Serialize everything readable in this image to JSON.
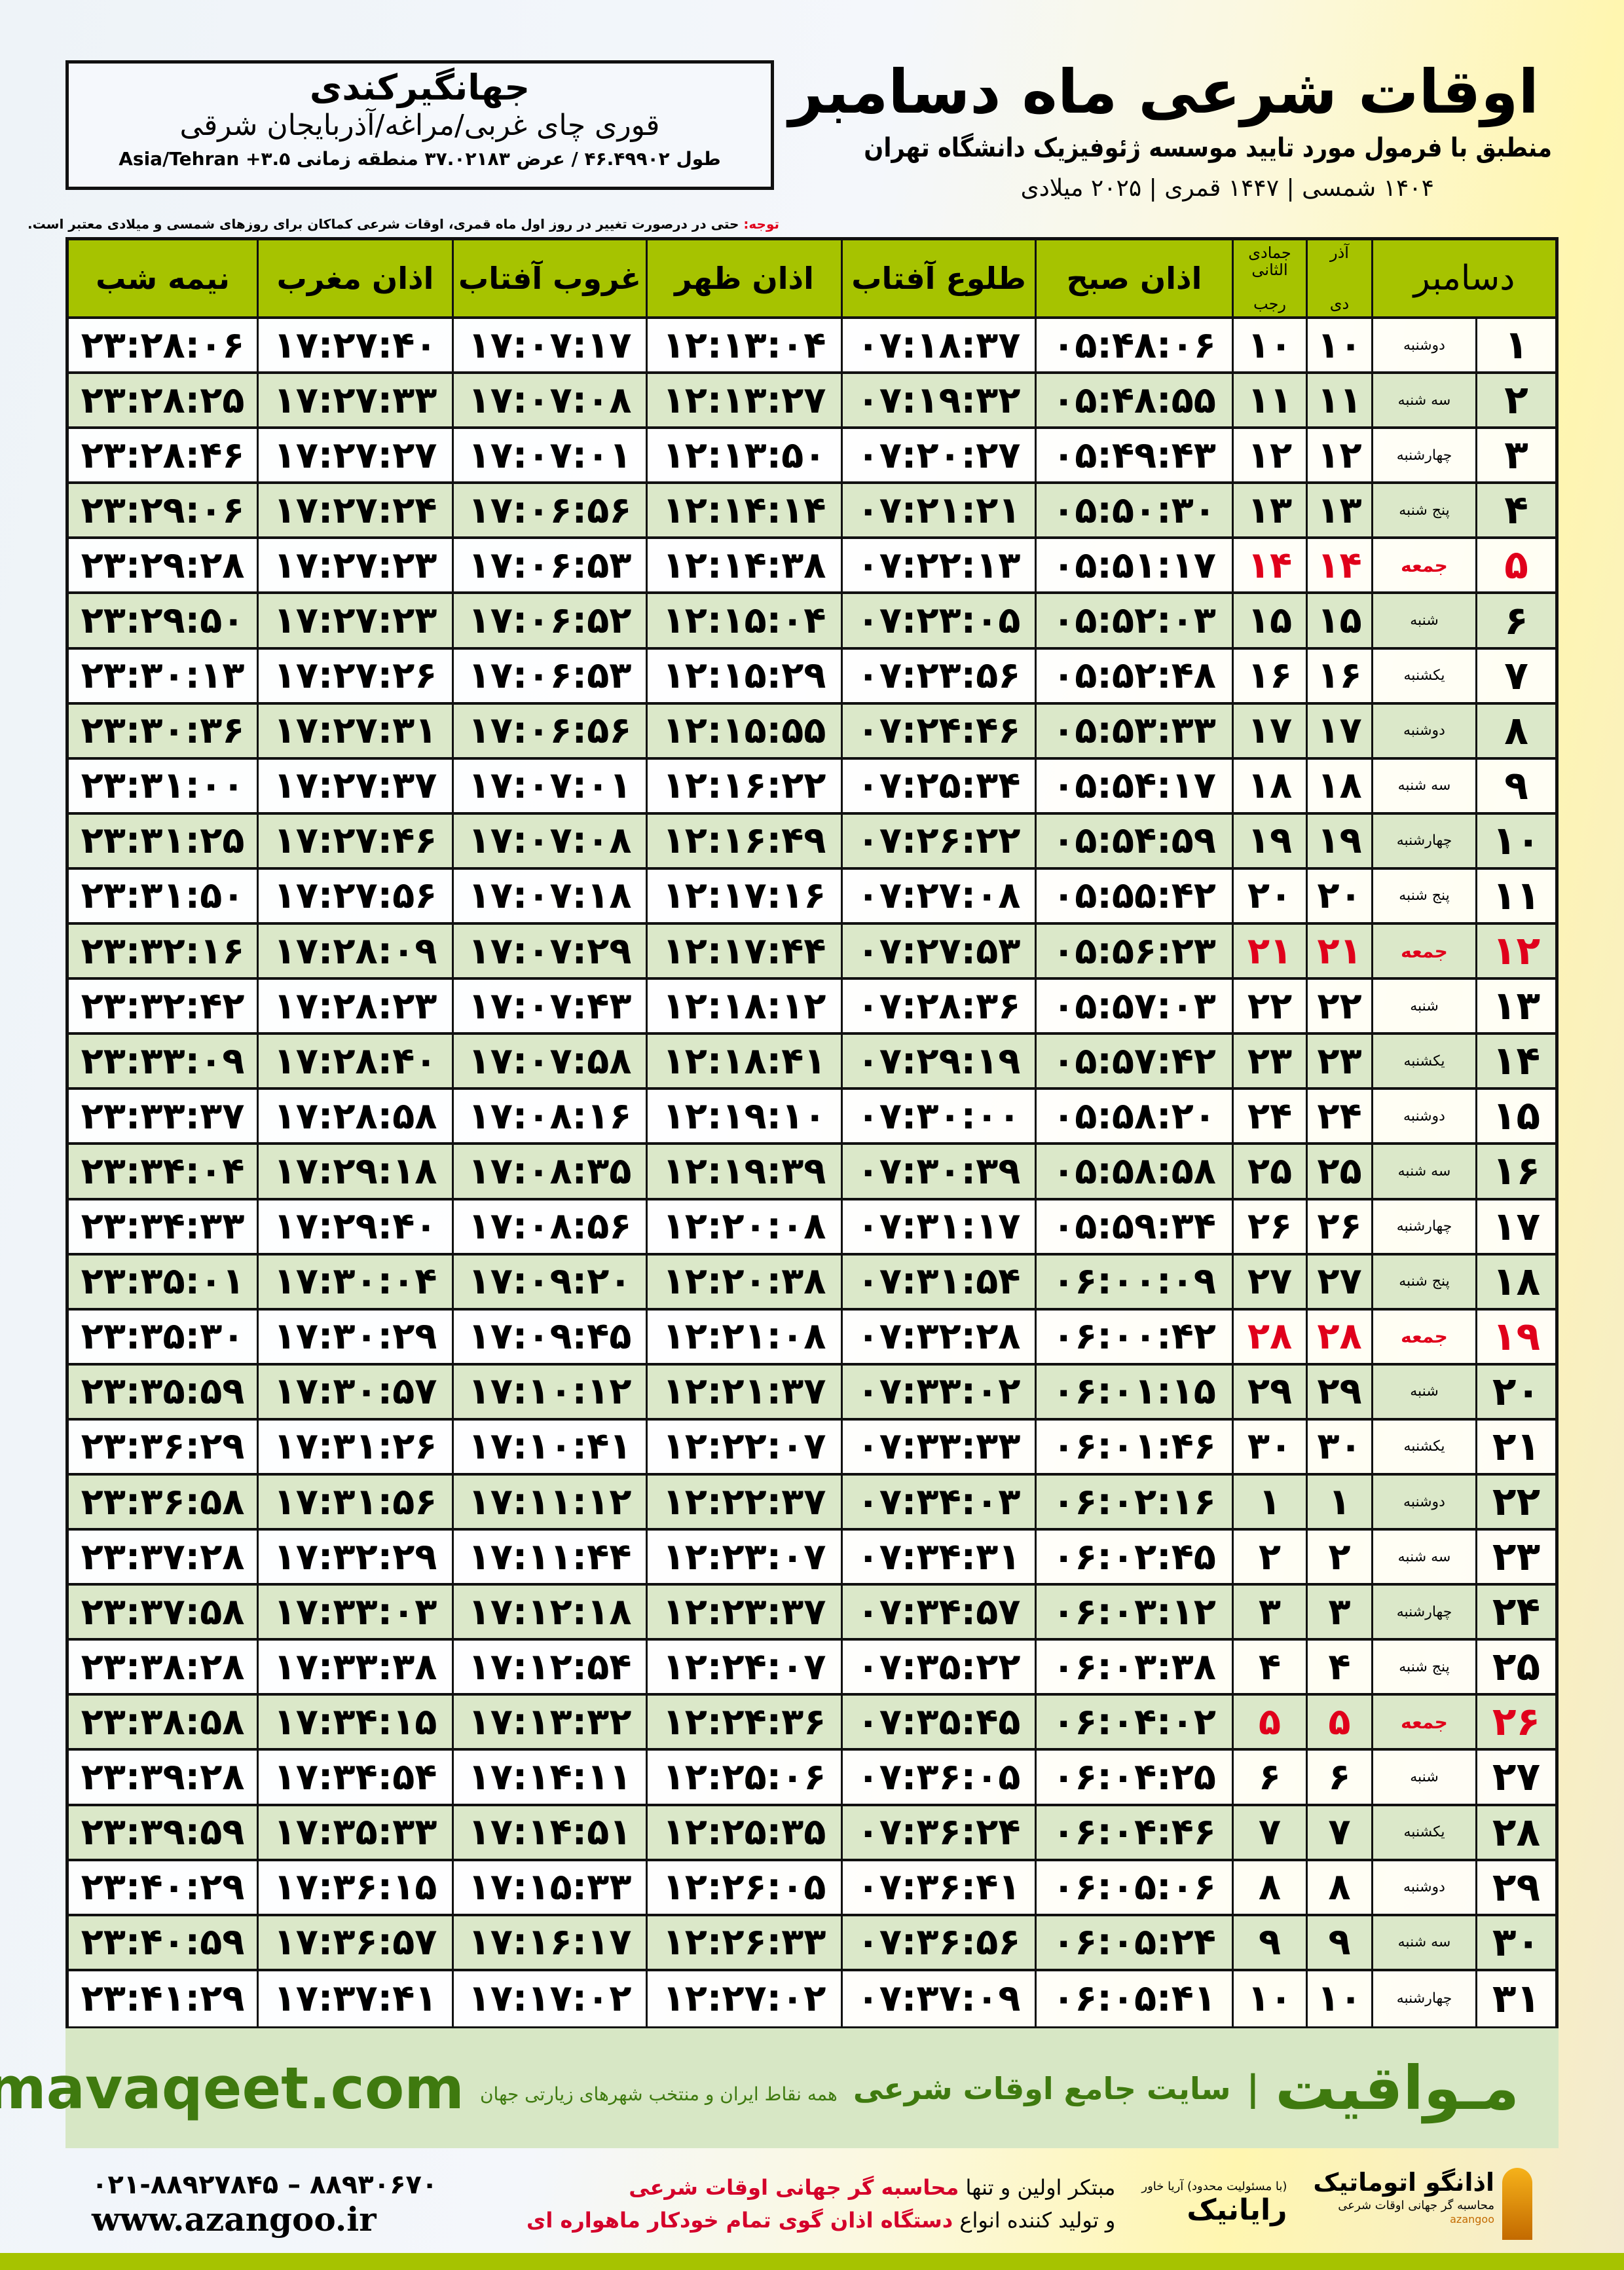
{
  "location": {
    "name": "جهانگیرکندی",
    "region": "قوری چای غربی/مراغه/آذربایجان شرقی",
    "coords": "طول ۴۶.۴۹۹۰۲ / عرض ۳۷.۰۲۱۸۳ منطقه زمانی ۳.۵+ Asia/Tehran"
  },
  "header": {
    "title": "اوقات شرعی ماه دسامبر",
    "subtitle": "منطبق با فرمول مورد تایید موسسه ژئوفیزیک دانشگاه تهران",
    "year_line": "۱۴۰۴ شمسی | ۱۴۴۷ قمری | ۲۰۲۵ میلادی"
  },
  "note": {
    "label": "توجه:",
    "text": " حتی در درصورت تغییر در روز اول ماه قمری، اوقات شرعی کماکان برای روزهای شمسی و میلادی معتبر است."
  },
  "table": {
    "columns": {
      "month": "دسامبر",
      "dey_top": "آذر",
      "dey": "دی",
      "rajab_top": "جمادی الثانی",
      "rajab": "رجب",
      "fajr": "اذان صبح",
      "sunrise": "طلوع آفتاب",
      "dhuhr": "اذان ظهر",
      "sunset": "غروب آفتاب",
      "maghrib": "اذان مغرب",
      "midnight": "نیمه شب"
    },
    "highlight_color": "#e0001b",
    "rows": [
      [
        "۱",
        "دوشنبه",
        "۱۰",
        "۱۰",
        "۰۵:۴۸:۰۶",
        "۰۷:۱۸:۳۷",
        "۱۲:۱۳:۰۴",
        "۱۷:۰۷:۱۷",
        "۱۷:۲۷:۴۰",
        "۲۳:۲۸:۰۶"
      ],
      [
        "۲",
        "سه شنبه",
        "۱۱",
        "۱۱",
        "۰۵:۴۸:۵۵",
        "۰۷:۱۹:۳۲",
        "۱۲:۱۳:۲۷",
        "۱۷:۰۷:۰۸",
        "۱۷:۲۷:۳۳",
        "۲۳:۲۸:۲۵"
      ],
      [
        "۳",
        "چهارشنبه",
        "۱۲",
        "۱۲",
        "۰۵:۴۹:۴۳",
        "۰۷:۲۰:۲۷",
        "۱۲:۱۳:۵۰",
        "۱۷:۰۷:۰۱",
        "۱۷:۲۷:۲۷",
        "۲۳:۲۸:۴۶"
      ],
      [
        "۴",
        "پنج شنبه",
        "۱۳",
        "۱۳",
        "۰۵:۵۰:۳۰",
        "۰۷:۲۱:۲۱",
        "۱۲:۱۴:۱۴",
        "۱۷:۰۶:۵۶",
        "۱۷:۲۷:۲۴",
        "۲۳:۲۹:۰۶"
      ],
      [
        "۵",
        "جمعه",
        "۱۴",
        "۱۴",
        "۰۵:۵۱:۱۷",
        "۰۷:۲۲:۱۳",
        "۱۲:۱۴:۳۸",
        "۱۷:۰۶:۵۳",
        "۱۷:۲۷:۲۳",
        "۲۳:۲۹:۲۸"
      ],
      [
        "۶",
        "شنبه",
        "۱۵",
        "۱۵",
        "۰۵:۵۲:۰۳",
        "۰۷:۲۳:۰۵",
        "۱۲:۱۵:۰۴",
        "۱۷:۰۶:۵۲",
        "۱۷:۲۷:۲۳",
        "۲۳:۲۹:۵۰"
      ],
      [
        "۷",
        "یکشنبه",
        "۱۶",
        "۱۶",
        "۰۵:۵۲:۴۸",
        "۰۷:۲۳:۵۶",
        "۱۲:۱۵:۲۹",
        "۱۷:۰۶:۵۳",
        "۱۷:۲۷:۲۶",
        "۲۳:۳۰:۱۳"
      ],
      [
        "۸",
        "دوشنبه",
        "۱۷",
        "۱۷",
        "۰۵:۵۳:۳۳",
        "۰۷:۲۴:۴۶",
        "۱۲:۱۵:۵۵",
        "۱۷:۰۶:۵۶",
        "۱۷:۲۷:۳۱",
        "۲۳:۳۰:۳۶"
      ],
      [
        "۹",
        "سه شنبه",
        "۱۸",
        "۱۸",
        "۰۵:۵۴:۱۷",
        "۰۷:۲۵:۳۴",
        "۱۲:۱۶:۲۲",
        "۱۷:۰۷:۰۱",
        "۱۷:۲۷:۳۷",
        "۲۳:۳۱:۰۰"
      ],
      [
        "۱۰",
        "چهارشنبه",
        "۱۹",
        "۱۹",
        "۰۵:۵۴:۵۹",
        "۰۷:۲۶:۲۲",
        "۱۲:۱۶:۴۹",
        "۱۷:۰۷:۰۸",
        "۱۷:۲۷:۴۶",
        "۲۳:۳۱:۲۵"
      ],
      [
        "۱۱",
        "پنج شنبه",
        "۲۰",
        "۲۰",
        "۰۵:۵۵:۴۲",
        "۰۷:۲۷:۰۸",
        "۱۲:۱۷:۱۶",
        "۱۷:۰۷:۱۸",
        "۱۷:۲۷:۵۶",
        "۲۳:۳۱:۵۰"
      ],
      [
        "۱۲",
        "جمعه",
        "۲۱",
        "۲۱",
        "۰۵:۵۶:۲۳",
        "۰۷:۲۷:۵۳",
        "۱۲:۱۷:۴۴",
        "۱۷:۰۷:۲۹",
        "۱۷:۲۸:۰۹",
        "۲۳:۳۲:۱۶"
      ],
      [
        "۱۳",
        "شنبه",
        "۲۲",
        "۲۲",
        "۰۵:۵۷:۰۳",
        "۰۷:۲۸:۳۶",
        "۱۲:۱۸:۱۲",
        "۱۷:۰۷:۴۳",
        "۱۷:۲۸:۲۳",
        "۲۳:۳۲:۴۲"
      ],
      [
        "۱۴",
        "یکشنبه",
        "۲۳",
        "۲۳",
        "۰۵:۵۷:۴۲",
        "۰۷:۲۹:۱۹",
        "۱۲:۱۸:۴۱",
        "۱۷:۰۷:۵۸",
        "۱۷:۲۸:۴۰",
        "۲۳:۳۳:۰۹"
      ],
      [
        "۱۵",
        "دوشنبه",
        "۲۴",
        "۲۴",
        "۰۵:۵۸:۲۰",
        "۰۷:۳۰:۰۰",
        "۱۲:۱۹:۱۰",
        "۱۷:۰۸:۱۶",
        "۱۷:۲۸:۵۸",
        "۲۳:۳۳:۳۷"
      ],
      [
        "۱۶",
        "سه شنبه",
        "۲۵",
        "۲۵",
        "۰۵:۵۸:۵۸",
        "۰۷:۳۰:۳۹",
        "۱۲:۱۹:۳۹",
        "۱۷:۰۸:۳۵",
        "۱۷:۲۹:۱۸",
        "۲۳:۳۴:۰۴"
      ],
      [
        "۱۷",
        "چهارشنبه",
        "۲۶",
        "۲۶",
        "۰۵:۵۹:۳۴",
        "۰۷:۳۱:۱۷",
        "۱۲:۲۰:۰۸",
        "۱۷:۰۸:۵۶",
        "۱۷:۲۹:۴۰",
        "۲۳:۳۴:۳۳"
      ],
      [
        "۱۸",
        "پنج شنبه",
        "۲۷",
        "۲۷",
        "۰۶:۰۰:۰۹",
        "۰۷:۳۱:۵۴",
        "۱۲:۲۰:۳۸",
        "۱۷:۰۹:۲۰",
        "۱۷:۳۰:۰۴",
        "۲۳:۳۵:۰۱"
      ],
      [
        "۱۹",
        "جمعه",
        "۲۸",
        "۲۸",
        "۰۶:۰۰:۴۲",
        "۰۷:۳۲:۲۸",
        "۱۲:۲۱:۰۸",
        "۱۷:۰۹:۴۵",
        "۱۷:۳۰:۲۹",
        "۲۳:۳۵:۳۰"
      ],
      [
        "۲۰",
        "شنبه",
        "۲۹",
        "۲۹",
        "۰۶:۰۱:۱۵",
        "۰۷:۳۳:۰۲",
        "۱۲:۲۱:۳۷",
        "۱۷:۱۰:۱۲",
        "۱۷:۳۰:۵۷",
        "۲۳:۳۵:۵۹"
      ],
      [
        "۲۱",
        "یکشنبه",
        "۳۰",
        "۳۰",
        "۰۶:۰۱:۴۶",
        "۰۷:۳۳:۳۳",
        "۱۲:۲۲:۰۷",
        "۱۷:۱۰:۴۱",
        "۱۷:۳۱:۲۶",
        "۲۳:۳۶:۲۹"
      ],
      [
        "۲۲",
        "دوشنبه",
        "۱",
        "۱",
        "۰۶:۰۲:۱۶",
        "۰۷:۳۴:۰۳",
        "۱۲:۲۲:۳۷",
        "۱۷:۱۱:۱۲",
        "۱۷:۳۱:۵۶",
        "۲۳:۳۶:۵۸"
      ],
      [
        "۲۳",
        "سه شنبه",
        "۲",
        "۲",
        "۰۶:۰۲:۴۵",
        "۰۷:۳۴:۳۱",
        "۱۲:۲۳:۰۷",
        "۱۷:۱۱:۴۴",
        "۱۷:۳۲:۲۹",
        "۲۳:۳۷:۲۸"
      ],
      [
        "۲۴",
        "چهارشنبه",
        "۳",
        "۳",
        "۰۶:۰۳:۱۲",
        "۰۷:۳۴:۵۷",
        "۱۲:۲۳:۳۷",
        "۱۷:۱۲:۱۸",
        "۱۷:۳۳:۰۳",
        "۲۳:۳۷:۵۸"
      ],
      [
        "۲۵",
        "پنج شنبه",
        "۴",
        "۴",
        "۰۶:۰۳:۳۸",
        "۰۷:۳۵:۲۲",
        "۱۲:۲۴:۰۷",
        "۱۷:۱۲:۵۴",
        "۱۷:۳۳:۳۸",
        "۲۳:۳۸:۲۸"
      ],
      [
        "۲۶",
        "جمعه",
        "۵",
        "۵",
        "۰۶:۰۴:۰۲",
        "۰۷:۳۵:۴۵",
        "۱۲:۲۴:۳۶",
        "۱۷:۱۳:۳۲",
        "۱۷:۳۴:۱۵",
        "۲۳:۳۸:۵۸"
      ],
      [
        "۲۷",
        "شنبه",
        "۶",
        "۶",
        "۰۶:۰۴:۲۵",
        "۰۷:۳۶:۰۵",
        "۱۲:۲۵:۰۶",
        "۱۷:۱۴:۱۱",
        "۱۷:۳۴:۵۴",
        "۲۳:۳۹:۲۸"
      ],
      [
        "۲۸",
        "یکشنبه",
        "۷",
        "۷",
        "۰۶:۰۴:۴۶",
        "۰۷:۳۶:۲۴",
        "۱۲:۲۵:۳۵",
        "۱۷:۱۴:۵۱",
        "۱۷:۳۵:۳۳",
        "۲۳:۳۹:۵۹"
      ],
      [
        "۲۹",
        "دوشنبه",
        "۸",
        "۸",
        "۰۶:۰۵:۰۶",
        "۰۷:۳۶:۴۱",
        "۱۲:۲۶:۰۵",
        "۱۷:۱۵:۳۳",
        "۱۷:۳۶:۱۵",
        "۲۳:۴۰:۲۹"
      ],
      [
        "۳۰",
        "سه شنبه",
        "۹",
        "۹",
        "۰۶:۰۵:۲۴",
        "۰۷:۳۶:۵۶",
        "۱۲:۲۶:۳۳",
        "۱۷:۱۶:۱۷",
        "۱۷:۳۶:۵۷",
        "۲۳:۴۰:۵۹"
      ],
      [
        "۳۱",
        "چهارشنبه",
        "۱۰",
        "۱۰",
        "۰۶:۰۵:۴۱",
        "۰۷:۳۷:۰۹",
        "۱۲:۲۷:۰۲",
        "۱۷:۱۷:۰۲",
        "۱۷:۳۷:۴۱",
        "۲۳:۴۱:۲۹"
      ]
    ]
  },
  "footer": {
    "brand": "مـواقیت",
    "separator": "|",
    "tagline": "سایت جامع اوقات شرعی",
    "tagline2": "همه نقاط ایران و منتخب شهرهای زیارتی جهان",
    "site": "mavaqeet.com",
    "az_name": "اذانگو اتوماتیک",
    "az_sub": "محاسبه گر جهانی اوقات شرعی",
    "az_en": "azangoo",
    "rayanik_small": "(با مسئولیت محدود) آریا خاور",
    "rayanik": "رایانیک",
    "ad_line1_a": "مبتکر اولین و تنها ",
    "ad_line1_b": "محاسبه گر جهانی اوقات شرعی",
    "ad_line2_a": "و تولید کننده انواع ",
    "ad_line2_b": "دستگاه اذان گوی تمام خودکار ماهواره ای",
    "phone": "۰۲۱-۸۸۹۲۷۸۴۵ – ۸۸۹۳۰۶۷۰",
    "website": "www.azangoo.ir"
  }
}
